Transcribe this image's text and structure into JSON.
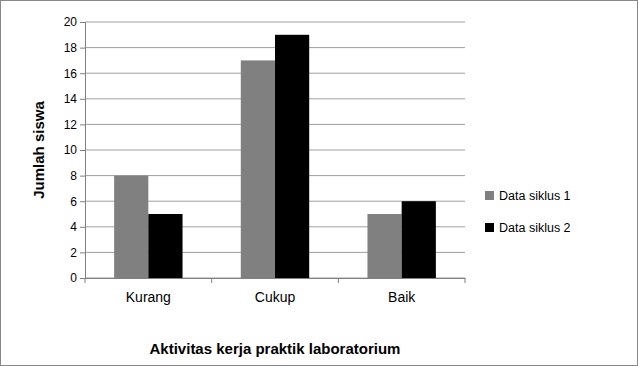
{
  "chart_data": {
    "type": "bar",
    "x_label": "Aktivitas kerja praktik laboratorium",
    "y_label": "Jumlah siswa",
    "categories": [
      "Kurang",
      "Cukup",
      "Baik"
    ],
    "series": [
      {
        "name": "Data siklus 1",
        "color": "#808080",
        "values": [
          8,
          17,
          5
        ]
      },
      {
        "name": "Data siklus 2",
        "color": "#000000",
        "values": [
          5,
          19,
          6
        ]
      }
    ],
    "ylim": [
      0,
      20
    ],
    "yticks": [
      0,
      2,
      4,
      6,
      8,
      10,
      12,
      14,
      16,
      18,
      20
    ],
    "grid": true,
    "legend": "right"
  }
}
